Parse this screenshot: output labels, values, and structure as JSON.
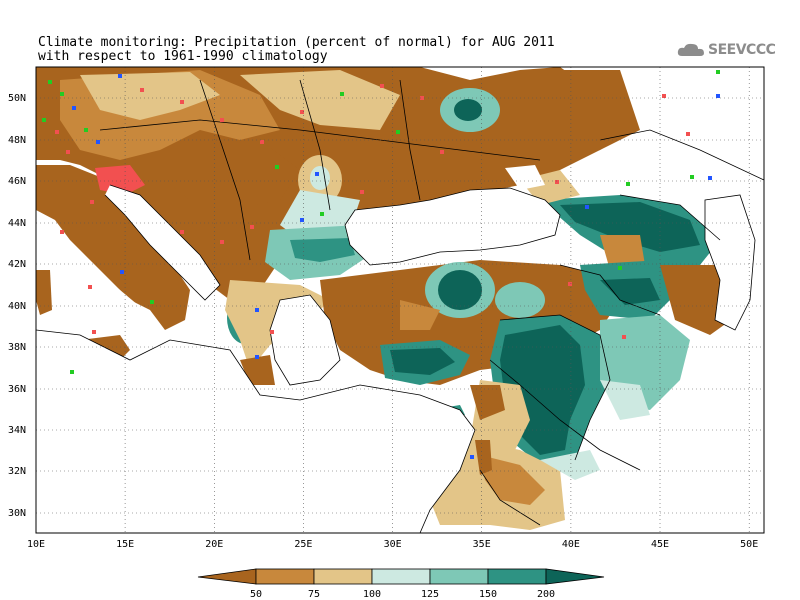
{
  "title": {
    "line1": "Climate monitoring: Precipitation (percent of normal) for AUG 2011",
    "line2": "with respect to 1961-1990 climatology"
  },
  "logo": {
    "text": "SEEVCCC"
  },
  "map": {
    "lon_range": [
      10,
      51
    ],
    "lat_range": [
      29,
      51.5
    ],
    "x_ticks": [
      "10E",
      "15E",
      "20E",
      "25E",
      "30E",
      "35E",
      "40E",
      "45E",
      "50E"
    ],
    "y_ticks": [
      "50N",
      "48N",
      "46N",
      "44N",
      "42N",
      "40N",
      "38N",
      "36N",
      "34N",
      "32N",
      "30N"
    ],
    "grid": "dotted"
  },
  "legend": {
    "labels": [
      "50",
      "75",
      "100",
      "125",
      "150",
      "200"
    ],
    "colors": [
      "#a8641e",
      "#c8883c",
      "#e3c588",
      "#cde9e1",
      "#7ec8b6",
      "#2e9383",
      "#0d6458"
    ]
  }
}
